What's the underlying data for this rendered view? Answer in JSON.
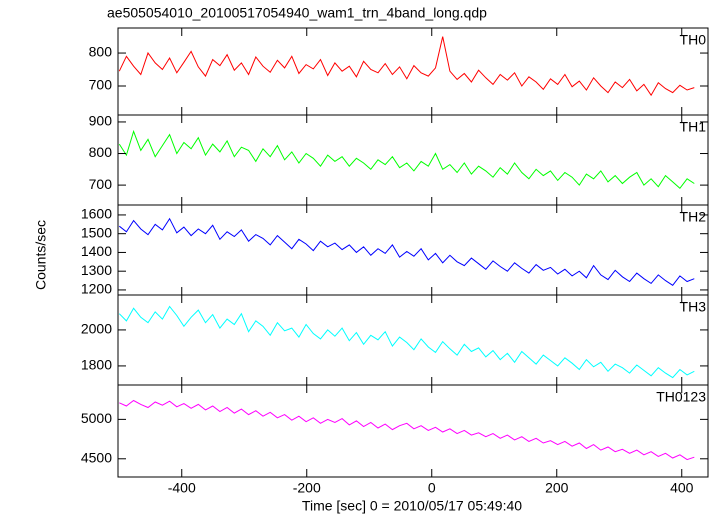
{
  "chart_data": {
    "type": "line",
    "title": "ae505054010_20100517054940_wam1_trn_4band_long.qdp",
    "xlabel": "Time [sec] 0 = 2010/05/17 05:49:40",
    "ylabel": "Counts/sec",
    "xlim": [
      -502,
      442
    ],
    "xticks": [
      -400,
      -200,
      0,
      200,
      400
    ],
    "x": [
      -500,
      -488.5,
      -477,
      -465.5,
      -454,
      -442.5,
      -431,
      -419.5,
      -408,
      -396.5,
      -385,
      -373.5,
      -362,
      -350.5,
      -339,
      -327.5,
      -316,
      -304.5,
      -293,
      -281.5,
      -270,
      -258.5,
      -247,
      -235.5,
      -224,
      -212.5,
      -201,
      -189.5,
      -178,
      -166.5,
      -155,
      -143.5,
      -132,
      -120.5,
      -109,
      -97.5,
      -86,
      -74.5,
      -63,
      -51.5,
      -40,
      -28.5,
      -17,
      -5.5,
      6,
      17.5,
      29,
      40.5,
      52,
      63.5,
      75,
      86.5,
      98,
      109.5,
      121,
      132.5,
      144,
      155.5,
      167,
      178.5,
      190,
      201.5,
      213,
      224.5,
      236,
      247.5,
      259,
      270.5,
      282,
      293.5,
      305,
      316.5,
      328,
      339.5,
      351,
      362.5,
      374,
      385.5,
      397,
      408.5,
      420
    ],
    "series": [
      {
        "name": "TH0",
        "color": "#ff0000",
        "ylim": [
          612,
          876
        ],
        "yticks": [
          700,
          800
        ],
        "values": [
          745,
          790,
          760,
          735,
          800,
          770,
          750,
          785,
          740,
          772,
          805,
          758,
          730,
          780,
          762,
          795,
          748,
          770,
          735,
          788,
          760,
          742,
          778,
          755,
          790,
          738,
          765,
          752,
          780,
          732,
          770,
          745,
          760,
          728,
          775,
          750,
          740,
          768,
          735,
          758,
          722,
          762,
          740,
          730,
          755,
          850,
          745,
          720,
          738,
          712,
          748,
          725,
          705,
          735,
          718,
          740,
          700,
          728,
          712,
          690,
          722,
          705,
          735,
          698,
          715,
          688,
          725,
          700,
          680,
          712,
          695,
          720,
          685,
          705,
          672,
          710,
          692,
          680,
          702,
          688,
          695
        ]
      },
      {
        "name": "TH1",
        "color": "#00ff00",
        "ylim": [
          637,
          922
        ],
        "yticks": [
          700,
          800,
          900
        ],
        "values": [
          830,
          795,
          870,
          810,
          845,
          790,
          825,
          860,
          800,
          835,
          815,
          850,
          795,
          830,
          805,
          840,
          790,
          820,
          810,
          775,
          815,
          790,
          825,
          780,
          805,
          770,
          800,
          785,
          760,
          795,
          775,
          790,
          760,
          785,
          770,
          750,
          780,
          765,
          790,
          755,
          770,
          745,
          775,
          760,
          800,
          750,
          765,
          740,
          770,
          735,
          760,
          745,
          725,
          755,
          735,
          770,
          740,
          720,
          750,
          730,
          745,
          715,
          740,
          725,
          700,
          735,
          720,
          745,
          710,
          730,
          705,
          725,
          740,
          700,
          720,
          695,
          730,
          710,
          690,
          720,
          705
        ]
      },
      {
        "name": "TH2",
        "color": "#0000ff",
        "ylim": [
          1173,
          1653
        ],
        "yticks": [
          1200,
          1300,
          1400,
          1500,
          1600
        ],
        "values": [
          1540,
          1510,
          1570,
          1525,
          1495,
          1550,
          1520,
          1580,
          1505,
          1535,
          1490,
          1525,
          1500,
          1545,
          1470,
          1510,
          1485,
          1520,
          1460,
          1495,
          1475,
          1440,
          1490,
          1455,
          1420,
          1470,
          1445,
          1410,
          1460,
          1430,
          1450,
          1415,
          1440,
          1400,
          1430,
          1385,
          1420,
          1395,
          1440,
          1375,
          1405,
          1380,
          1420,
          1360,
          1395,
          1345,
          1385,
          1350,
          1330,
          1370,
          1340,
          1310,
          1355,
          1325,
          1300,
          1345,
          1315,
          1290,
          1335,
          1305,
          1320,
          1285,
          1310,
          1275,
          1300,
          1265,
          1330,
          1280,
          1255,
          1305,
          1270,
          1245,
          1290,
          1260,
          1235,
          1280,
          1250,
          1225,
          1275,
          1245,
          1260
        ]
      },
      {
        "name": "TH3",
        "color": "#00ffff",
        "ylim": [
          1694,
          2194
        ],
        "yticks": [
          1800,
          2000
        ],
        "values": [
          2090,
          2050,
          2120,
          2070,
          2040,
          2100,
          2060,
          2130,
          2080,
          2020,
          2070,
          2110,
          2040,
          2085,
          2010,
          2060,
          2030,
          2090,
          1990,
          2050,
          2020,
          1970,
          2040,
          1995,
          2010,
          1960,
          2030,
          1980,
          1950,
          2000,
          1965,
          2010,
          1940,
          1985,
          1920,
          1970,
          1945,
          1990,
          1910,
          1960,
          1930,
          1890,
          1950,
          1905,
          1875,
          1935,
          1895,
          1860,
          1920,
          1880,
          1900,
          1850,
          1885,
          1835,
          1870,
          1820,
          1880,
          1845,
          1810,
          1860,
          1830,
          1800,
          1845,
          1815,
          1780,
          1835,
          1795,
          1820,
          1770,
          1810,
          1790,
          1760,
          1805,
          1775,
          1745,
          1790,
          1760,
          1735,
          1780,
          1750,
          1770
        ]
      },
      {
        "name": "TH0123",
        "color": "#ff00ff",
        "ylim": [
          4269,
          5436
        ],
        "yticks": [
          4500,
          5000
        ],
        "values": [
          5210,
          5170,
          5240,
          5190,
          5150,
          5220,
          5180,
          5230,
          5160,
          5200,
          5140,
          5190,
          5120,
          5170,
          5100,
          5150,
          5080,
          5130,
          5060,
          5110,
          5040,
          5090,
          5020,
          5060,
          4990,
          5040,
          4970,
          5020,
          4950,
          5000,
          4960,
          5010,
          4930,
          4980,
          4910,
          4960,
          4890,
          4940,
          4870,
          4920,
          4950,
          4880,
          4920,
          4860,
          4900,
          4840,
          4880,
          4820,
          4860,
          4800,
          4830,
          4780,
          4820,
          4760,
          4800,
          4740,
          4780,
          4720,
          4760,
          4700,
          4730,
          4680,
          4720,
          4660,
          4700,
          4630,
          4680,
          4610,
          4650,
          4590,
          4620,
          4570,
          4610,
          4550,
          4590,
          4530,
          4570,
          4510,
          4550,
          4490,
          4520
        ]
      }
    ]
  }
}
